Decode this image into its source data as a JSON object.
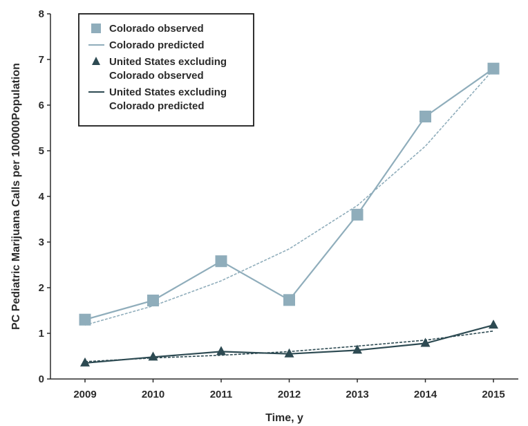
{
  "chart_data": {
    "type": "line",
    "xlabel": "Time, y",
    "ylabel": "PC Pediatric Marijuana Calls per 100000Population",
    "categories": [
      "2009",
      "2010",
      "2011",
      "2012",
      "2013",
      "2014",
      "2015"
    ],
    "ylim": [
      0,
      8
    ],
    "yticks": [
      "0",
      "1",
      "2",
      "3",
      "4",
      "5",
      "6",
      "7",
      "8"
    ],
    "grid": false,
    "legend_position": "top-left",
    "series": [
      {
        "name": "Colorado observed",
        "kind": "observed",
        "marker": "square",
        "color": "#8fadbb",
        "values": [
          1.3,
          1.72,
          2.58,
          1.73,
          3.6,
          5.75,
          6.8
        ]
      },
      {
        "name": "Colorado predicted",
        "kind": "predicted",
        "color": "#8fadbb",
        "values": [
          1.18,
          1.6,
          2.15,
          2.85,
          3.8,
          5.1,
          6.78
        ]
      },
      {
        "name": "United States excluding Colorado observed",
        "legend_lines": [
          "United States excluding",
          "Colorado observed"
        ],
        "kind": "observed",
        "marker": "triangle",
        "color": "#2d4a52",
        "values": [
          0.35,
          0.48,
          0.6,
          0.55,
          0.63,
          0.78,
          1.18
        ]
      },
      {
        "name": "United States excluding Colorado predicted",
        "legend_lines": [
          "United States excluding",
          "Colorado predicted"
        ],
        "kind": "predicted",
        "color": "#2d4a52",
        "values": [
          0.38,
          0.46,
          0.52,
          0.6,
          0.72,
          0.85,
          1.05
        ]
      }
    ]
  }
}
